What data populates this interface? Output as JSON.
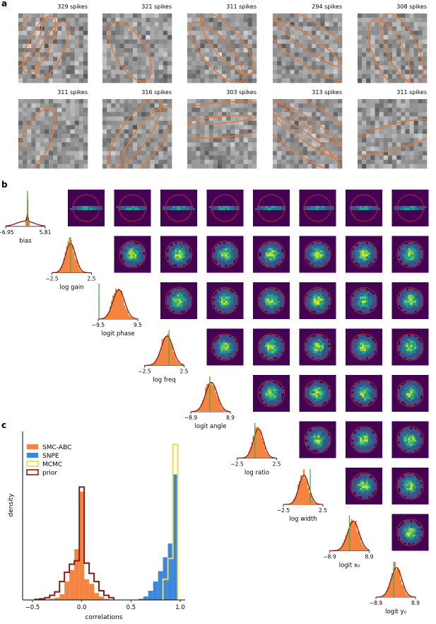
{
  "panel_labels": {
    "a": "a",
    "b": "b",
    "c": "c"
  },
  "colors": {
    "smc": "#f4843f",
    "snpe": "#3b87e0",
    "mcmc": "#f2dc44",
    "prior": "#8b1a10",
    "truth": "#3fae49",
    "rf": "#e07a3a",
    "ring": "#c02020",
    "bg": "#440154"
  },
  "spike_labels": [
    "329 spikes",
    "321 spikes",
    "311 spikes",
    "294 spikes",
    "308 spikes",
    "311 spikes",
    "316 spikes",
    "303 spikes",
    "313 spikes",
    "311 spikes"
  ],
  "marginals": [
    {
      "label": "bias",
      "ticks": [
        "−6.95",
        "5.81"
      ]
    },
    {
      "label": "log gain",
      "ticks": [
        "−2.5",
        "2.5"
      ]
    },
    {
      "label": "logit phase",
      "ticks": [
        "−9.5",
        "9.5"
      ]
    },
    {
      "label": "log freq",
      "ticks": [
        "−2.5",
        "2.5"
      ]
    },
    {
      "label": "logit angle",
      "ticks": [
        "−8.9",
        "8.9"
      ]
    },
    {
      "label": "log ratio",
      "ticks": [
        "−2.5",
        "2.5"
      ]
    },
    {
      "label": "log width",
      "ticks": [
        "−2.5",
        "2.5"
      ]
    },
    {
      "label": "logit x₀",
      "ticks": [
        "−8.9",
        "8.9"
      ]
    },
    {
      "label": "logit y₀",
      "ticks": [
        "−8.9",
        "8.9"
      ]
    }
  ],
  "panel_c": {
    "legend": [
      "SMC-ABC",
      "SNPE",
      "MCMC",
      "prior"
    ],
    "xlabel": "correlations",
    "ylabel": "density",
    "xticks": [
      "−0.5",
      "0.0",
      "0.5",
      "1.0"
    ]
  },
  "chart_data": {
    "type": "bar",
    "xlabel": "correlations",
    "ylabel": "density",
    "xlim": [
      -0.6,
      1.05
    ],
    "bin_width": 0.05,
    "series": [
      {
        "name": "SMC-ABC",
        "x": [
          -0.45,
          -0.4,
          -0.35,
          -0.3,
          -0.25,
          -0.2,
          -0.15,
          -0.1,
          -0.05,
          0.0,
          0.05,
          0.1,
          0.15,
          0.2,
          0.25,
          0.3
        ],
        "values": [
          0.01,
          0.02,
          0.05,
          0.1,
          0.2,
          0.5,
          1.6,
          2.6,
          4.4,
          9.4,
          1.8,
          1.4,
          0.6,
          0.3,
          0.1,
          0.05
        ]
      },
      {
        "name": "SNPE",
        "x": [
          0.6,
          0.65,
          0.7,
          0.75,
          0.8,
          0.85,
          0.9,
          0.95
        ],
        "values": [
          0.1,
          0.3,
          0.8,
          1.6,
          2.5,
          3.7,
          4.9,
          10.9
        ]
      },
      {
        "name": "MCMC",
        "x": [
          0.85,
          0.9,
          0.95
        ],
        "values": [
          1.8,
          3.6,
          13.5
        ]
      },
      {
        "name": "prior",
        "x": [
          -0.45,
          -0.4,
          -0.35,
          -0.3,
          -0.25,
          -0.2,
          -0.15,
          -0.1,
          -0.05,
          0.0,
          0.05,
          0.1,
          0.15,
          0.2,
          0.25,
          0.3
        ],
        "values": [
          0.05,
          0.1,
          0.2,
          0.4,
          0.7,
          1.6,
          2.4,
          3.1,
          3.4,
          9.8,
          3.2,
          2.3,
          1.6,
          0.8,
          0.4,
          0.2
        ]
      }
    ]
  }
}
